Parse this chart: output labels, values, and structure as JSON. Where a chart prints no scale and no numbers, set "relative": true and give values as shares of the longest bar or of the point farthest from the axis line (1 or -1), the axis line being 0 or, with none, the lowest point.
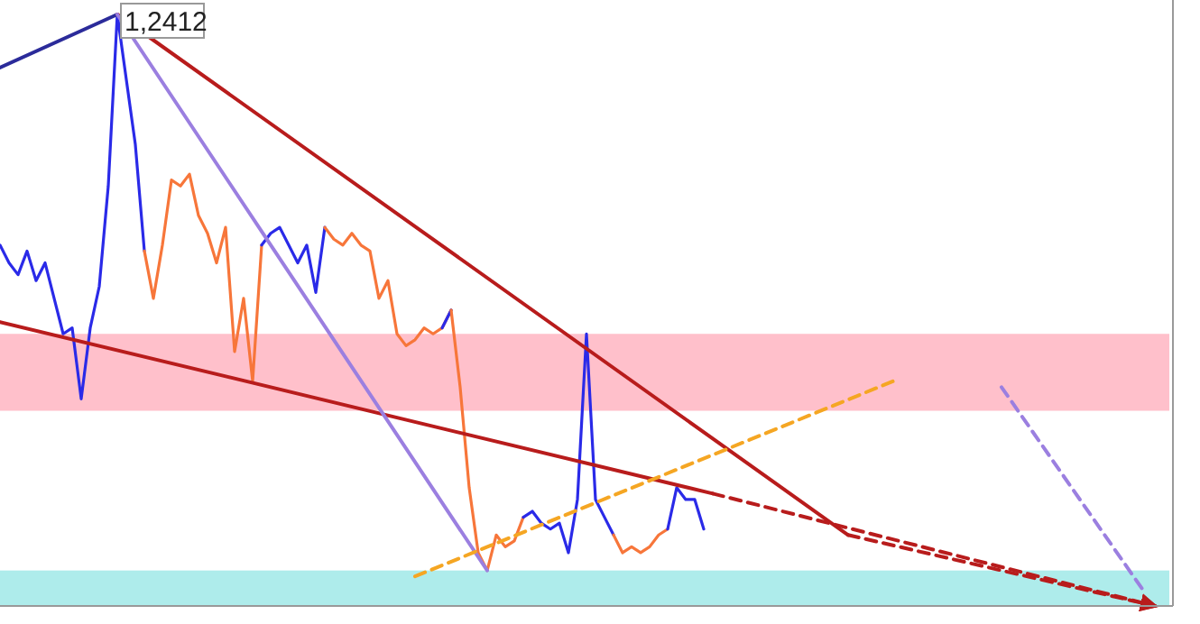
{
  "chart_data": {
    "type": "line",
    "relative": true,
    "categories": [
      null,
      null,
      null,
      null,
      null,
      null,
      null,
      null,
      null,
      null,
      null,
      null,
      null,
      null,
      null,
      null,
      null,
      null,
      null,
      null,
      null,
      null,
      null,
      null,
      null,
      null,
      null,
      null,
      null,
      null,
      null,
      null,
      null,
      null,
      null,
      null,
      null,
      null,
      null,
      null,
      null,
      null,
      null,
      null,
      null,
      null,
      null,
      null,
      null,
      null,
      null,
      null,
      null,
      null,
      null,
      null,
      null,
      null,
      null,
      null,
      null,
      null,
      null,
      null,
      null,
      null,
      null,
      null,
      null,
      null,
      null,
      null,
      null,
      null,
      null,
      null,
      null,
      null,
      null,
      null,
      null,
      null,
      null,
      null,
      null,
      null,
      null,
      null,
      null,
      null,
      null,
      null,
      null,
      null,
      null,
      null,
      null,
      null,
      null,
      null,
      null,
      null,
      null,
      null,
      null,
      null,
      null,
      null,
      null,
      null,
      null,
      null,
      null,
      null,
      null,
      null,
      null,
      null,
      null,
      null,
      null,
      null,
      null,
      null,
      null,
      null,
      null,
      null,
      null,
      null
    ],
    "series": [
      {
        "color": "#2a2ae8",
        "values": [
          0.61,
          0.58,
          0.56,
          0.6,
          0.55,
          0.58,
          0.52,
          0.46,
          0.47,
          0.35,
          0.47,
          0.54,
          0.71,
          1.0,
          0.89,
          0.78,
          0.6,
          null,
          null,
          null,
          null,
          null,
          null,
          null,
          null,
          null,
          null,
          null,
          null,
          null,
          null,
          null,
          null,
          null,
          null,
          null,
          null,
          null,
          null,
          null,
          null,
          null,
          null,
          null,
          null,
          null,
          null,
          null,
          null,
          null,
          null,
          null,
          null,
          null,
          null,
          null,
          null,
          null,
          null,
          null,
          null,
          null,
          null,
          null,
          null,
          null,
          null,
          null,
          null,
          null,
          null,
          null,
          null,
          null,
          null,
          null,
          null,
          null,
          null,
          null,
          null,
          null,
          null,
          null,
          null,
          null,
          null,
          null,
          null,
          null,
          null,
          null,
          null,
          null,
          null,
          null,
          null,
          null,
          null,
          null,
          null,
          null,
          null,
          null,
          null,
          null,
          null,
          null,
          null,
          null,
          null,
          null,
          null,
          null,
          null,
          null,
          null,
          null,
          null,
          null,
          null,
          null,
          null,
          null,
          null,
          null,
          null,
          null,
          null,
          null
        ]
      },
      {
        "color": "#f7763a",
        "values": [
          null,
          null,
          null,
          null,
          null,
          null,
          null,
          null,
          null,
          null,
          null,
          null,
          null,
          null,
          null,
          null,
          0.6,
          0.52,
          0.61,
          0.72,
          0.71,
          0.73,
          0.66,
          0.63,
          0.58,
          0.64,
          0.43,
          0.52,
          0.38,
          0.61,
          null,
          null,
          null,
          null,
          null,
          null,
          null,
          null,
          null,
          null,
          null,
          null,
          null,
          null,
          null,
          null,
          null,
          null,
          null,
          null,
          null,
          null,
          null,
          null,
          null,
          null,
          null,
          null,
          null,
          null,
          null,
          null,
          null,
          null,
          null,
          null,
          null,
          null,
          null,
          null,
          null,
          null,
          null,
          null,
          null,
          null,
          null,
          null,
          null,
          null,
          null,
          null,
          null,
          null,
          null,
          null,
          null,
          null,
          null,
          null,
          null,
          null,
          null,
          null,
          null,
          null,
          null,
          null,
          null,
          null,
          null,
          null,
          null,
          null,
          null,
          null,
          null,
          null,
          null,
          null,
          null,
          null,
          null,
          null,
          null,
          null,
          null,
          null,
          null,
          null,
          null,
          null,
          null,
          null,
          null,
          null,
          null,
          null,
          null,
          null
        ]
      },
      {
        "color": "#2a2ae8",
        "values": [
          null,
          null,
          null,
          null,
          null,
          null,
          null,
          null,
          null,
          null,
          null,
          null,
          null,
          null,
          null,
          null,
          null,
          null,
          null,
          null,
          null,
          null,
          null,
          null,
          null,
          null,
          null,
          null,
          null,
          0.61,
          0.63,
          0.64,
          0.61,
          0.58,
          0.61,
          0.53,
          0.64,
          null,
          null,
          null,
          null,
          null,
          null,
          null,
          null,
          null,
          null,
          null,
          null,
          null,
          null,
          null,
          null,
          null,
          null,
          null,
          null,
          null,
          null,
          null,
          null,
          null,
          null,
          null,
          null,
          null,
          null,
          null,
          null,
          null,
          null,
          null,
          null,
          null,
          null,
          null,
          null,
          null,
          null,
          null,
          null,
          null,
          null,
          null,
          null,
          null,
          null,
          null,
          null,
          null,
          null,
          null,
          null,
          null,
          null,
          null,
          null,
          null,
          null,
          null,
          null,
          null,
          null,
          null,
          null,
          null,
          null,
          null,
          null,
          null,
          null,
          null,
          null,
          null,
          null,
          null,
          null,
          null,
          null,
          null,
          null,
          null,
          null,
          null,
          null,
          null,
          null,
          null,
          null,
          null
        ]
      },
      {
        "color": "#f7763a",
        "values": [
          null,
          null,
          null,
          null,
          null,
          null,
          null,
          null,
          null,
          null,
          null,
          null,
          null,
          null,
          null,
          null,
          null,
          null,
          null,
          null,
          null,
          null,
          null,
          null,
          null,
          null,
          null,
          null,
          null,
          null,
          null,
          null,
          null,
          null,
          null,
          null,
          0.64,
          0.62,
          0.61,
          0.63,
          0.61,
          0.6,
          0.52,
          0.55,
          0.46,
          0.44,
          0.45,
          0.47,
          0.46,
          0.47,
          0.5,
          null,
          null,
          null,
          null,
          null,
          null,
          null,
          null,
          null,
          null,
          null,
          null,
          null,
          null,
          null,
          null,
          null,
          null,
          null,
          null,
          null,
          null,
          null,
          null,
          null,
          null,
          null,
          null,
          null,
          null,
          null,
          null,
          null,
          null,
          null,
          null,
          null,
          null,
          null,
          null,
          null,
          null,
          null,
          null,
          null,
          null,
          null,
          null,
          null,
          null,
          null,
          null,
          null,
          null,
          null,
          null,
          null,
          null,
          null,
          null,
          null,
          null,
          null,
          null,
          null,
          null,
          null,
          null,
          null,
          null,
          null,
          null,
          null,
          null,
          null,
          null,
          null,
          null,
          null
        ]
      },
      {
        "color": "#2a2ae8",
        "values": [
          null,
          null,
          null,
          null,
          null,
          null,
          null,
          null,
          null,
          null,
          null,
          null,
          null,
          null,
          null,
          null,
          null,
          null,
          null,
          null,
          null,
          null,
          null,
          null,
          null,
          null,
          null,
          null,
          null,
          null,
          null,
          null,
          null,
          null,
          null,
          null,
          null,
          null,
          null,
          null,
          null,
          null,
          null,
          null,
          null,
          null,
          null,
          null,
          null,
          0.47,
          0.5,
          null,
          null,
          null,
          null,
          null,
          null,
          null,
          null,
          null,
          null,
          null,
          null,
          null,
          null,
          null,
          null,
          null,
          null,
          null,
          null,
          null,
          null,
          null,
          null,
          null,
          null,
          null,
          null,
          null,
          null,
          null,
          null,
          null,
          null,
          null,
          null,
          null,
          null,
          null,
          null,
          null,
          null,
          null,
          null,
          null,
          null,
          null,
          null,
          null,
          null,
          null,
          null,
          null,
          null,
          null,
          null,
          null,
          null,
          null,
          null,
          null,
          null,
          null,
          null,
          null,
          null,
          null,
          null,
          null,
          null,
          null,
          null,
          null,
          null,
          null,
          null,
          null,
          null,
          null
        ]
      },
      {
        "color": "#f7763a",
        "values": [
          null,
          null,
          null,
          null,
          null,
          null,
          null,
          null,
          null,
          null,
          null,
          null,
          null,
          null,
          null,
          null,
          null,
          null,
          null,
          null,
          null,
          null,
          null,
          null,
          null,
          null,
          null,
          null,
          null,
          null,
          null,
          null,
          null,
          null,
          null,
          null,
          null,
          null,
          null,
          null,
          null,
          null,
          null,
          null,
          null,
          null,
          null,
          null,
          null,
          null,
          0.5,
          0.37,
          0.2,
          0.09,
          0.06,
          0.12,
          0.1,
          0.11,
          0.15,
          null,
          null,
          null,
          null,
          null,
          null,
          null,
          null,
          null,
          null,
          null,
          null,
          null,
          null,
          null,
          null,
          null,
          null,
          null,
          null,
          null,
          null,
          null,
          null,
          null,
          null,
          null,
          null,
          null,
          null,
          null,
          null,
          null,
          null,
          null,
          null,
          null,
          null,
          null,
          null,
          null,
          null,
          null,
          null,
          null,
          null,
          null,
          null,
          null,
          null,
          null,
          null,
          null,
          null,
          null,
          null,
          null,
          null,
          null,
          null,
          null,
          null,
          null,
          null,
          null,
          null,
          null,
          null,
          null,
          null,
          null
        ]
      },
      {
        "color": "#2a2ae8",
        "values": [
          null,
          null,
          null,
          null,
          null,
          null,
          null,
          null,
          null,
          null,
          null,
          null,
          null,
          null,
          null,
          null,
          null,
          null,
          null,
          null,
          null,
          null,
          null,
          null,
          null,
          null,
          null,
          null,
          null,
          null,
          null,
          null,
          null,
          null,
          null,
          null,
          null,
          null,
          null,
          null,
          null,
          null,
          null,
          null,
          null,
          null,
          null,
          null,
          null,
          null,
          null,
          null,
          null,
          null,
          null,
          null,
          null,
          null,
          0.15,
          0.16,
          0.14,
          0.13,
          0.14,
          0.09,
          0.18,
          0.46,
          0.18,
          0.15,
          0.12,
          null,
          null,
          null,
          null,
          null,
          null,
          null,
          null,
          null,
          null,
          null,
          null,
          null,
          null,
          null,
          null,
          null,
          null,
          null,
          null,
          null,
          null,
          null,
          null,
          null,
          null,
          null,
          null,
          null,
          null,
          null,
          null,
          null,
          null,
          null,
          null,
          null,
          null,
          null,
          null,
          null,
          null,
          null,
          null,
          null,
          null,
          null,
          null,
          null,
          null,
          null,
          null,
          null,
          null,
          null,
          null,
          null,
          null,
          null,
          null,
          null
        ]
      },
      {
        "color": "#f7763a",
        "values": [
          null,
          null,
          null,
          null,
          null,
          null,
          null,
          null,
          null,
          null,
          null,
          null,
          null,
          null,
          null,
          null,
          null,
          null,
          null,
          null,
          null,
          null,
          null,
          null,
          null,
          null,
          null,
          null,
          null,
          null,
          null,
          null,
          null,
          null,
          null,
          null,
          null,
          null,
          null,
          null,
          null,
          null,
          null,
          null,
          null,
          null,
          null,
          null,
          null,
          null,
          null,
          null,
          null,
          null,
          null,
          null,
          null,
          null,
          null,
          null,
          null,
          null,
          null,
          null,
          null,
          null,
          null,
          null,
          0.12,
          0.09,
          0.1,
          0.09,
          0.1,
          0.12,
          0.13,
          null,
          null,
          null,
          null,
          null,
          null,
          null,
          null,
          null,
          null,
          null,
          null,
          null,
          null,
          null,
          null,
          null,
          null,
          null,
          null,
          null,
          null,
          null,
          null,
          null,
          null,
          null,
          null,
          null,
          null,
          null,
          null,
          null,
          null,
          null,
          null,
          null,
          null,
          null,
          null,
          null,
          null,
          null,
          null,
          null,
          null,
          null,
          null,
          null,
          null,
          null,
          null,
          null,
          null,
          null
        ]
      },
      {
        "color": "#2a2ae8",
        "values": [
          null,
          null,
          null,
          null,
          null,
          null,
          null,
          null,
          null,
          null,
          null,
          null,
          null,
          null,
          null,
          null,
          null,
          null,
          null,
          null,
          null,
          null,
          null,
          null,
          null,
          null,
          null,
          null,
          null,
          null,
          null,
          null,
          null,
          null,
          null,
          null,
          null,
          null,
          null,
          null,
          null,
          null,
          null,
          null,
          null,
          null,
          null,
          null,
          null,
          null,
          null,
          null,
          null,
          null,
          null,
          null,
          null,
          null,
          null,
          null,
          null,
          null,
          null,
          null,
          null,
          null,
          null,
          null,
          null,
          null,
          null,
          null,
          null,
          null,
          0.13,
          0.2,
          0.18,
          0.18,
          0.13,
          null,
          null,
          null,
          null,
          null,
          null,
          null,
          null,
          null,
          null,
          null,
          null,
          null,
          null,
          null,
          null,
          null,
          null,
          null,
          null,
          null,
          null,
          null,
          null,
          null,
          null,
          null,
          null,
          null,
          null,
          null,
          null,
          null,
          null,
          null,
          null,
          null,
          null,
          null,
          null,
          null,
          null,
          null,
          null,
          null,
          null,
          null,
          null,
          null,
          null,
          null
        ]
      },
      {
        "color": "#2b2b9a",
        "line_style": "solid",
        "values": [
          0.91,
          null,
          null,
          null,
          null,
          null,
          null,
          null,
          null,
          null,
          null,
          null,
          null,
          1.0,
          null,
          null,
          null,
          null,
          null,
          null,
          null,
          null,
          null,
          null,
          null,
          null,
          null,
          null,
          null,
          null,
          null,
          null,
          null,
          null,
          null,
          null,
          null,
          null,
          null,
          null,
          null,
          null,
          null,
          null,
          null,
          null,
          null,
          null,
          null,
          null,
          null,
          null,
          null,
          null,
          null,
          null,
          null,
          null,
          null,
          null,
          null,
          null,
          null,
          null,
          null,
          null,
          null,
          null,
          null,
          null,
          null,
          null,
          null,
          null,
          null,
          null,
          null,
          null,
          null,
          null,
          null,
          null,
          null,
          null,
          null,
          null,
          null,
          null,
          null,
          null,
          null,
          null,
          null,
          null,
          null,
          null,
          null,
          null,
          null,
          null,
          null,
          null,
          null,
          null,
          null,
          null,
          null,
          null,
          null,
          null,
          null,
          null,
          null,
          null,
          null,
          null,
          null,
          null,
          null,
          null,
          null,
          null,
          null,
          null,
          null,
          null,
          null,
          null,
          null,
          null
        ]
      },
      {
        "color": "#b81c1c",
        "line_style": "solid",
        "values": [
          null,
          null,
          null,
          null,
          null,
          null,
          null,
          null,
          null,
          null,
          null,
          null,
          null,
          1.0,
          null,
          null,
          null,
          null,
          null,
          null,
          null,
          null,
          null,
          null,
          null,
          null,
          null,
          null,
          null,
          null,
          null,
          null,
          null,
          null,
          null,
          null,
          null,
          null,
          null,
          null,
          null,
          null,
          null,
          null,
          null,
          null,
          null,
          null,
          null,
          null,
          null,
          null,
          null,
          null,
          null,
          null,
          null,
          null,
          null,
          null,
          null,
          null,
          null,
          null,
          null,
          null,
          null,
          null,
          null,
          null,
          null,
          null,
          null,
          null,
          null,
          null,
          null,
          null,
          null,
          null,
          null,
          null,
          null,
          null,
          null,
          null,
          null,
          null,
          null,
          null,
          null,
          null,
          null,
          null,
          0.12,
          null,
          null,
          null,
          null,
          null,
          null,
          null,
          null,
          null,
          null,
          null,
          null,
          null,
          null,
          null,
          null,
          null,
          null,
          null,
          null,
          null,
          null,
          null,
          null,
          null,
          null,
          null,
          null,
          null,
          null,
          null,
          null,
          null,
          null,
          null
        ]
      },
      {
        "color": "#b81c1c",
        "line_style": "dashed",
        "values": [
          null,
          null,
          null,
          null,
          null,
          null,
          null,
          null,
          null,
          null,
          null,
          null,
          null,
          null,
          null,
          null,
          null,
          null,
          null,
          null,
          null,
          null,
          null,
          null,
          null,
          null,
          null,
          null,
          null,
          null,
          null,
          null,
          null,
          null,
          null,
          null,
          null,
          null,
          null,
          null,
          null,
          null,
          null,
          null,
          null,
          null,
          null,
          null,
          null,
          null,
          null,
          null,
          null,
          null,
          null,
          null,
          null,
          null,
          null,
          null,
          null,
          null,
          null,
          null,
          null,
          null,
          null,
          null,
          null,
          null,
          null,
          null,
          null,
          null,
          null,
          null,
          null,
          null,
          null,
          null,
          null,
          null,
          null,
          null,
          null,
          null,
          null,
          null,
          null,
          null,
          null,
          null,
          null,
          null,
          0.12,
          null,
          null,
          null,
          null,
          null,
          null,
          null,
          null,
          null,
          null,
          null,
          null,
          null,
          null,
          null,
          null,
          null,
          null,
          null,
          null,
          null,
          null,
          null,
          null,
          null,
          null,
          null,
          null,
          null,
          null,
          null,
          null,
          null,
          0,
          null
        ]
      },
      {
        "color": "#b81c1c",
        "line_style": "solid",
        "values": [
          0.48,
          null,
          null,
          null,
          null,
          null,
          null,
          null,
          null,
          null,
          null,
          null,
          null,
          null,
          null,
          null,
          null,
          null,
          null,
          null,
          null,
          null,
          null,
          null,
          null,
          null,
          null,
          null,
          null,
          null,
          null,
          null,
          null,
          null,
          null,
          null,
          null,
          null,
          null,
          null,
          null,
          null,
          null,
          null,
          null,
          null,
          null,
          null,
          null,
          null,
          null,
          null,
          null,
          null,
          null,
          null,
          null,
          null,
          null,
          null,
          null,
          null,
          null,
          null,
          null,
          null,
          null,
          null,
          null,
          null,
          null,
          null,
          null,
          null,
          null,
          null,
          null,
          null,
          null,
          0.19,
          null,
          null,
          null,
          null,
          null,
          null,
          null,
          null,
          null,
          null,
          null,
          null,
          null,
          null,
          null,
          null,
          null,
          null,
          null,
          null,
          null,
          null,
          null,
          null,
          null,
          null,
          null,
          null,
          null,
          null,
          null,
          null,
          null,
          null,
          null,
          null,
          null,
          null,
          null,
          null,
          null,
          null,
          null,
          null,
          null,
          null,
          null,
          null,
          null,
          null
        ]
      },
      {
        "color": "#b81c1c",
        "line_style": "dashed",
        "values": [
          null,
          null,
          null,
          null,
          null,
          null,
          null,
          null,
          null,
          null,
          null,
          null,
          null,
          null,
          null,
          null,
          null,
          null,
          null,
          null,
          null,
          null,
          null,
          null,
          null,
          null,
          null,
          null,
          null,
          null,
          null,
          null,
          null,
          null,
          null,
          null,
          null,
          null,
          null,
          null,
          null,
          null,
          null,
          null,
          null,
          null,
          null,
          null,
          null,
          null,
          null,
          null,
          null,
          null,
          null,
          null,
          null,
          null,
          null,
          null,
          null,
          null,
          null,
          null,
          null,
          null,
          null,
          null,
          null,
          null,
          null,
          null,
          null,
          null,
          null,
          null,
          null,
          null,
          null,
          0.19,
          null,
          null,
          null,
          null,
          null,
          null,
          null,
          null,
          null,
          null,
          null,
          null,
          null,
          null,
          null,
          null,
          null,
          null,
          null,
          null,
          null,
          null,
          null,
          null,
          null,
          null,
          null,
          null,
          null,
          null,
          null,
          null,
          null,
          null,
          null,
          null,
          null,
          null,
          null,
          null,
          null,
          null,
          null,
          null,
          null,
          null,
          null,
          null,
          0,
          null
        ]
      },
      {
        "color": "#9b7fe0",
        "line_style": "solid",
        "values": [
          null,
          null,
          null,
          null,
          null,
          null,
          null,
          null,
          null,
          null,
          null,
          null,
          null,
          1.0,
          null,
          null,
          null,
          null,
          null,
          null,
          null,
          null,
          null,
          null,
          null,
          null,
          null,
          null,
          null,
          null,
          null,
          null,
          null,
          null,
          null,
          null,
          null,
          null,
          null,
          null,
          null,
          null,
          null,
          null,
          null,
          null,
          null,
          null,
          null,
          null,
          null,
          null,
          null,
          null,
          0.06,
          null,
          null,
          null,
          null,
          null,
          null,
          null,
          null,
          null,
          null,
          null,
          null,
          null,
          null,
          null,
          null,
          null,
          null,
          null,
          null,
          null,
          null,
          null,
          null,
          null,
          null,
          null,
          null,
          null,
          null,
          null,
          null,
          null,
          null,
          null,
          null,
          null,
          null,
          null,
          null,
          null,
          null,
          null,
          null,
          null,
          null,
          null,
          null,
          null,
          null,
          null,
          null,
          null,
          null,
          null,
          null,
          null,
          null,
          null,
          null,
          null,
          null,
          null,
          null,
          null,
          null,
          null,
          null,
          null,
          null,
          null,
          null,
          null,
          null,
          null
        ]
      },
      {
        "color": "#9b7fe0",
        "line_style": "dashed",
        "values": [
          null,
          null,
          null,
          null,
          null,
          null,
          null,
          null,
          null,
          null,
          null,
          null,
          null,
          null,
          null,
          null,
          null,
          null,
          null,
          null,
          null,
          null,
          null,
          null,
          null,
          null,
          null,
          null,
          null,
          null,
          null,
          null,
          null,
          null,
          null,
          null,
          null,
          null,
          null,
          null,
          null,
          null,
          null,
          null,
          null,
          null,
          null,
          null,
          null,
          null,
          null,
          null,
          null,
          null,
          null,
          null,
          null,
          null,
          null,
          null,
          null,
          null,
          null,
          null,
          null,
          null,
          null,
          null,
          null,
          null,
          null,
          null,
          null,
          null,
          null,
          null,
          null,
          null,
          null,
          null,
          null,
          null,
          null,
          null,
          null,
          null,
          null,
          null,
          null,
          null,
          null,
          null,
          null,
          null,
          null,
          null,
          null,
          null,
          null,
          null,
          null,
          null,
          null,
          null,
          null,
          null,
          null,
          null,
          null,
          null,
          null,
          0.37,
          null,
          null,
          null,
          null,
          null,
          null,
          null,
          null,
          null,
          null,
          null,
          null,
          null,
          null,
          null,
          0.02,
          null,
          null
        ]
      },
      {
        "color": "#f5a623",
        "line_style": "dashed",
        "values": [
          null,
          null,
          null,
          null,
          null,
          null,
          null,
          null,
          null,
          null,
          null,
          null,
          null,
          null,
          null,
          null,
          null,
          null,
          null,
          null,
          null,
          null,
          null,
          null,
          null,
          null,
          null,
          null,
          null,
          null,
          null,
          null,
          null,
          null,
          null,
          null,
          null,
          null,
          null,
          null,
          null,
          null,
          null,
          null,
          null,
          null,
          0.05,
          null,
          null,
          null,
          null,
          null,
          null,
          null,
          null,
          null,
          null,
          null,
          null,
          null,
          null,
          null,
          null,
          null,
          null,
          null,
          null,
          null,
          null,
          null,
          null,
          null,
          null,
          null,
          null,
          null,
          null,
          null,
          null,
          null,
          null,
          null,
          null,
          null,
          null,
          null,
          null,
          null,
          null,
          null,
          null,
          null,
          null,
          null,
          null,
          null,
          null,
          null,
          null,
          0.38,
          null,
          null,
          null,
          null,
          null,
          null,
          null,
          null,
          null,
          null,
          null,
          null,
          null,
          null,
          null,
          null,
          null,
          null,
          null,
          null,
          null,
          null,
          null,
          null,
          null,
          null,
          null,
          null,
          null,
          null
        ]
      }
    ],
    "bands": [
      {
        "axis": "y",
        "from": 0.33,
        "to": 0.46,
        "color": "#ffc0cb"
      },
      {
        "axis": "y",
        "from": 0.0,
        "to": 0.06,
        "color": "#aeeceb"
      }
    ],
    "annotations": [
      "1,2412"
    ]
  }
}
